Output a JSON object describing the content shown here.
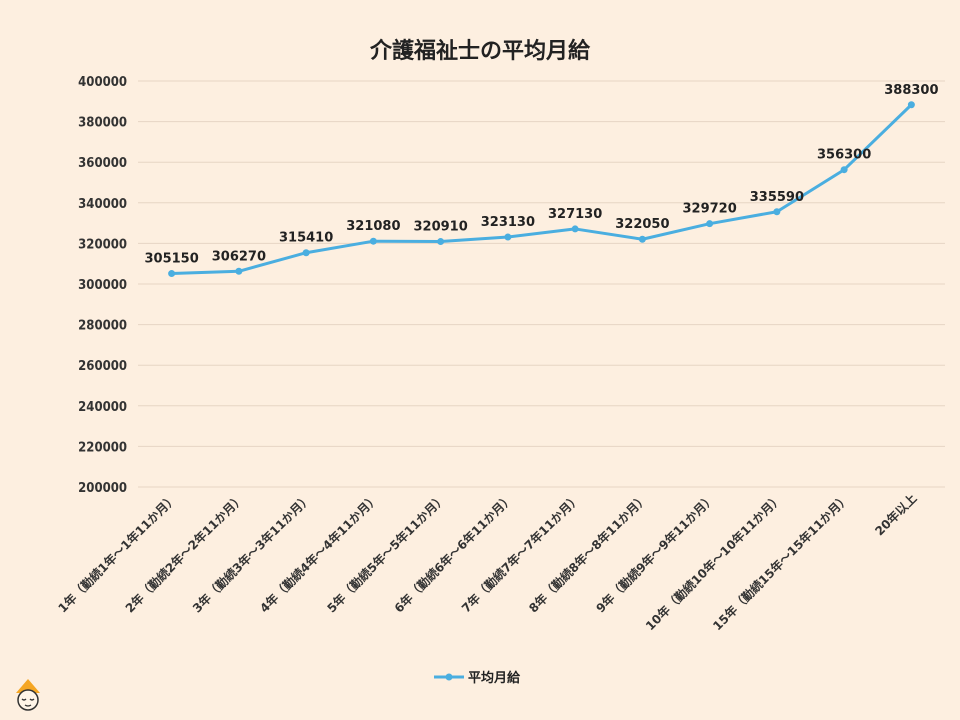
{
  "chart_data": {
    "type": "line",
    "title": "介護福祉士の平均月給",
    "categories": [
      "1年（勤続1年～1年11か月）",
      "2年（勤続2年～2年11か月）",
      "3年（勤続3年～3年11か月）",
      "4年（勤続4年～4年11か月）",
      "5年（勤続5年～5年11か月）",
      "6年（勤続6年～6年11か月）",
      "7年（勤続7年～7年11か月）",
      "8年（勤続8年～8年11か月）",
      "9年（勤続9年～9年11か月）",
      "10年（勤続10年～10年11か月）",
      "15年（勤続15年～15年11か月）",
      "20年以上"
    ],
    "series": [
      {
        "name": "平均月給",
        "values": [
          305150,
          306270,
          315410,
          321080,
          320910,
          323130,
          327130,
          322050,
          329720,
          335590,
          356300,
          388300
        ],
        "color": "#4aaee0"
      }
    ],
    "ylim": [
      200000,
      400000
    ],
    "yticks": [
      200000,
      220000,
      240000,
      260000,
      280000,
      300000,
      320000,
      340000,
      360000,
      380000,
      400000
    ],
    "xlabel": "",
    "ylabel": "",
    "grid": true,
    "legend": "bottom",
    "data_labels": true
  }
}
